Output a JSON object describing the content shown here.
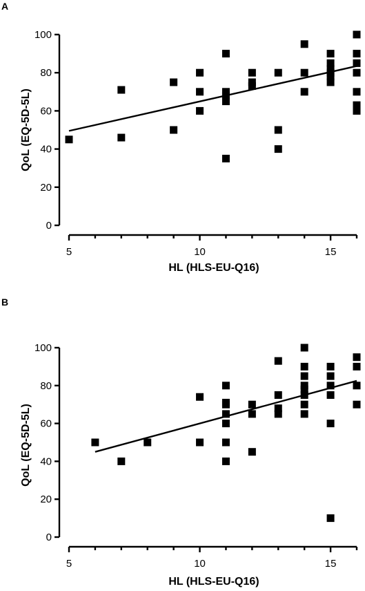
{
  "chart_data": [
    {
      "type": "scatter",
      "panel_label": "A",
      "xlabel": "HL (HLS-EU-Q16)",
      "ylabel": "QoL (EQ-5D-5L)",
      "xlim": [
        5,
        16
      ],
      "ylim": [
        0,
        100
      ],
      "xticks": [
        "5",
        "10",
        "15"
      ],
      "yticks": [
        "0",
        "20",
        "40",
        "60",
        "80",
        "100"
      ],
      "grid": false,
      "points": [
        [
          5,
          45
        ],
        [
          7,
          71
        ],
        [
          7,
          46
        ],
        [
          9,
          75
        ],
        [
          9,
          50
        ],
        [
          10,
          80
        ],
        [
          10,
          70
        ],
        [
          10,
          60
        ],
        [
          11,
          90
        ],
        [
          11,
          70
        ],
        [
          11,
          68
        ],
        [
          11,
          65
        ],
        [
          11,
          35
        ],
        [
          12,
          80
        ],
        [
          12,
          75
        ],
        [
          12,
          73
        ],
        [
          13,
          80
        ],
        [
          13,
          50
        ],
        [
          13,
          40
        ],
        [
          14,
          95
        ],
        [
          14,
          80
        ],
        [
          14,
          70
        ],
        [
          15,
          90
        ],
        [
          15,
          85
        ],
        [
          15,
          82
        ],
        [
          15,
          80
        ],
        [
          15,
          78
        ],
        [
          15,
          75
        ],
        [
          16,
          100
        ],
        [
          16,
          90
        ],
        [
          16,
          85
        ],
        [
          16,
          80
        ],
        [
          16,
          70
        ],
        [
          16,
          63
        ],
        [
          16,
          60
        ]
      ],
      "fit_line": {
        "x": [
          5,
          16
        ],
        "y": [
          49.5,
          83.5
        ]
      }
    },
    {
      "type": "scatter",
      "panel_label": "B",
      "xlabel": "HL (HLS-EU-Q16)",
      "ylabel": "QoL (EQ-5D-5L)",
      "xlim": [
        5,
        16
      ],
      "ylim": [
        0,
        100
      ],
      "xticks": [
        "5",
        "10",
        "15"
      ],
      "yticks": [
        "0",
        "20",
        "40",
        "60",
        "80",
        "100"
      ],
      "grid": false,
      "points": [
        [
          6,
          50
        ],
        [
          7,
          40
        ],
        [
          8,
          50
        ],
        [
          10,
          74
        ],
        [
          10,
          50
        ],
        [
          11,
          80
        ],
        [
          11,
          71
        ],
        [
          11,
          70
        ],
        [
          11,
          65
        ],
        [
          11,
          60
        ],
        [
          11,
          50
        ],
        [
          11,
          40
        ],
        [
          12,
          70
        ],
        [
          12,
          65
        ],
        [
          12,
          45
        ],
        [
          13,
          93
        ],
        [
          13,
          75
        ],
        [
          13,
          68
        ],
        [
          13,
          65
        ],
        [
          14,
          100
        ],
        [
          14,
          90
        ],
        [
          14,
          85
        ],
        [
          14,
          80
        ],
        [
          14,
          78
        ],
        [
          14,
          75
        ],
        [
          14,
          70
        ],
        [
          14,
          65
        ],
        [
          15,
          90
        ],
        [
          15,
          85
        ],
        [
          15,
          80
        ],
        [
          15,
          75
        ],
        [
          15,
          60
        ],
        [
          15,
          10
        ],
        [
          16,
          95
        ],
        [
          16,
          90
        ],
        [
          16,
          80
        ],
        [
          16,
          70
        ]
      ],
      "fit_line": {
        "x": [
          6,
          16
        ],
        "y": [
          45,
          82.5
        ]
      }
    }
  ]
}
